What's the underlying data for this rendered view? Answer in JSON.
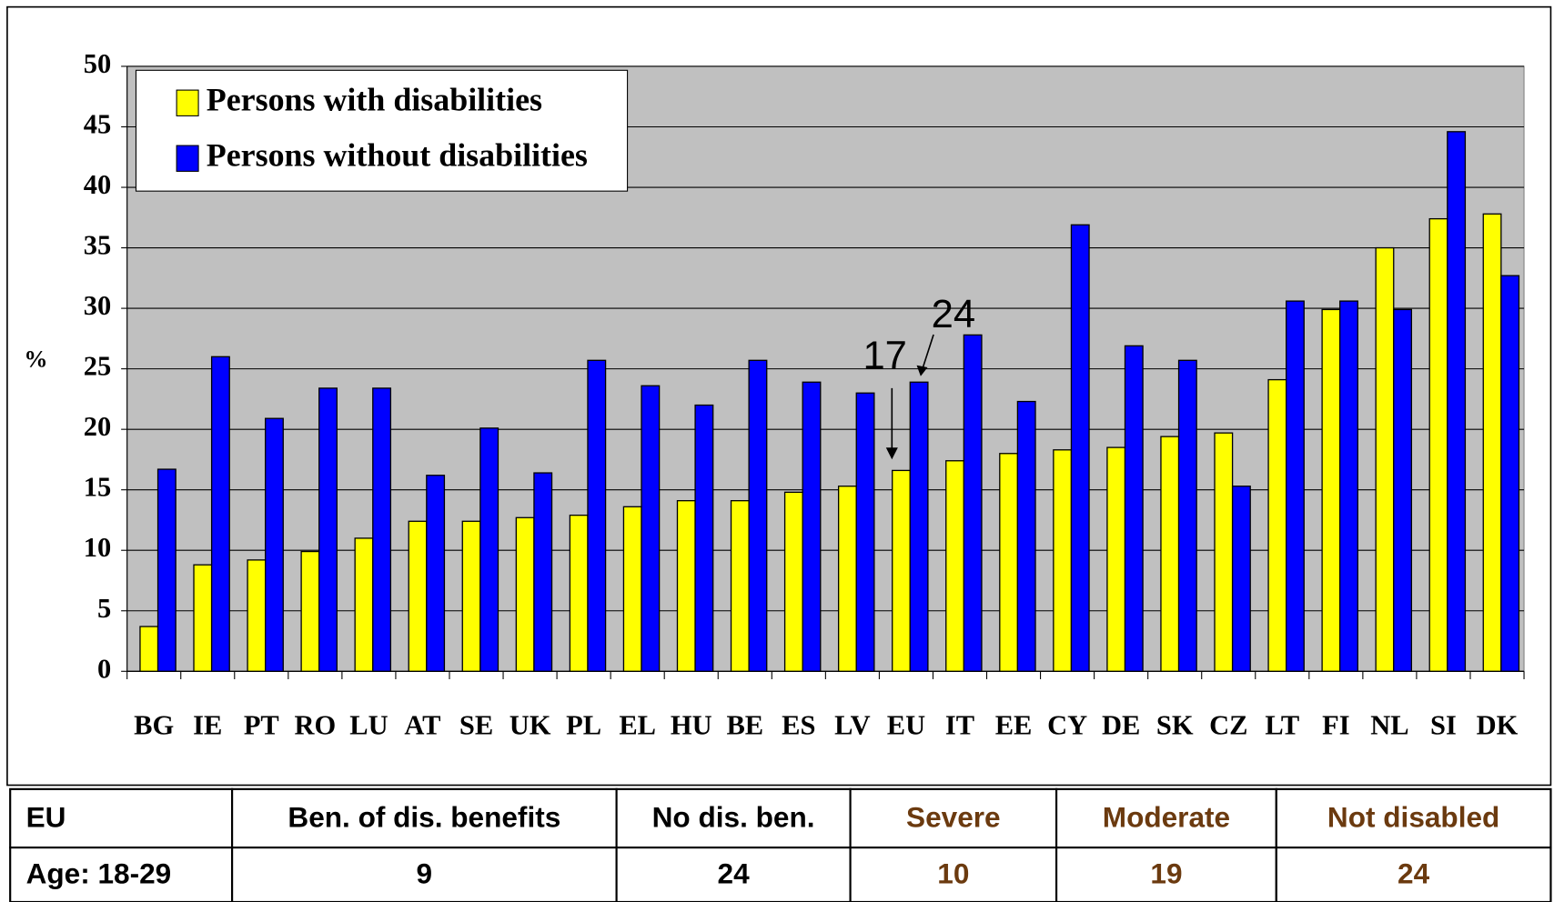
{
  "chart_data": {
    "type": "bar",
    "ylabel": "%",
    "categories": [
      "BG",
      "IE",
      "PT",
      "RO",
      "LU",
      "AT",
      "SE",
      "UK",
      "PL",
      "EL",
      "HU",
      "BE",
      "ES",
      "LV",
      "EU",
      "IT",
      "EE",
      "CY",
      "DE",
      "SK",
      "CZ",
      "LT",
      "FI",
      "NL",
      "SI",
      "DK"
    ],
    "series": [
      {
        "name": "Persons with disabilities",
        "color": "#ffff00",
        "values": [
          3.7,
          8.8,
          9.2,
          9.9,
          11,
          12.4,
          12.4,
          12.7,
          12.9,
          13.6,
          14.1,
          14.1,
          14.8,
          15.3,
          16.6,
          17.4,
          18,
          18.3,
          18.5,
          19.4,
          19.7,
          24.1,
          29.9,
          35,
          37.4,
          37.8
        ]
      },
      {
        "name": "Persons without disabilities",
        "color": "#0000ff",
        "values": [
          16.7,
          26,
          20.9,
          23.4,
          23.4,
          16.2,
          20.1,
          16.4,
          25.7,
          23.6,
          22,
          25.7,
          23.9,
          23,
          23.9,
          27.8,
          22.3,
          36.9,
          26.9,
          25.7,
          15.3,
          30.6,
          30.6,
          29.9,
          44.6,
          32.7
        ]
      }
    ],
    "ylim": [
      0,
      50
    ],
    "yticks": [
      0,
      5,
      10,
      15,
      20,
      25,
      30,
      35,
      40,
      45,
      50
    ],
    "grid": true,
    "annotations": [
      "17",
      "24"
    ]
  },
  "table": {
    "header": [
      "EU",
      "Ben. of dis. benefits",
      "No dis. ben.",
      "Severe",
      "Moderate",
      "Not disabled"
    ],
    "rows": [
      [
        "Age: 18-29",
        9,
        24,
        10,
        19,
        24
      ]
    ]
  }
}
